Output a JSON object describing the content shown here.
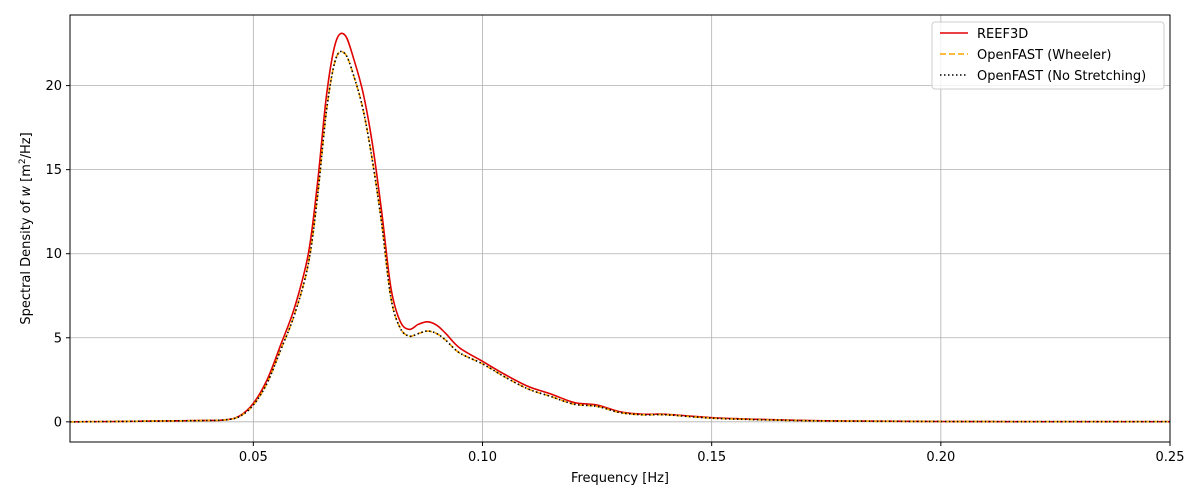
{
  "chart_data": {
    "type": "line",
    "title": "",
    "xlabel": "Frequency [Hz]",
    "ylabel_prefix": "Spectral Density of ",
    "ylabel_var": "w",
    "ylabel_unit_open": " [m",
    "ylabel_unit_sup": "2",
    "ylabel_unit_close": "/Hz]",
    "xlim": [
      0.01,
      0.25
    ],
    "ylim": [
      -1.2,
      24.2
    ],
    "xticks": [
      0.05,
      0.1,
      0.15,
      0.2,
      0.25
    ],
    "xtick_labels": [
      "0.05",
      "0.10",
      "0.15",
      "0.20",
      "0.25"
    ],
    "yticks": [
      0,
      5,
      10,
      15,
      20
    ],
    "ytick_labels": [
      "0",
      "5",
      "10",
      "15",
      "20"
    ],
    "grid": true,
    "legend_position": "top-right",
    "series": [
      {
        "name": "REEF3D",
        "color": "#e00000",
        "style": "solid",
        "x": [
          0.01,
          0.02,
          0.03,
          0.04,
          0.044,
          0.047,
          0.05,
          0.053,
          0.056,
          0.059,
          0.062,
          0.064,
          0.066,
          0.068,
          0.07,
          0.072,
          0.074,
          0.076,
          0.078,
          0.08,
          0.082,
          0.084,
          0.086,
          0.088,
          0.09,
          0.092,
          0.095,
          0.1,
          0.105,
          0.11,
          0.115,
          0.12,
          0.125,
          0.13,
          0.135,
          0.14,
          0.15,
          0.16,
          0.17,
          0.18,
          0.2,
          0.22,
          0.25
        ],
        "y": [
          0,
          0.02,
          0.05,
          0.08,
          0.12,
          0.35,
          1.1,
          2.5,
          4.6,
          6.8,
          10.0,
          14.2,
          19.5,
          22.6,
          23.0,
          21.5,
          19.5,
          16.5,
          12.5,
          8.0,
          6.0,
          5.5,
          5.8,
          5.95,
          5.75,
          5.25,
          4.4,
          3.6,
          2.8,
          2.1,
          1.65,
          1.15,
          1.0,
          0.6,
          0.45,
          0.45,
          0.25,
          0.15,
          0.08,
          0.05,
          0.02,
          0.01,
          0.01
        ]
      },
      {
        "name": "OpenFAST (Wheeler)",
        "color": "#ffa500",
        "style": "dashed",
        "x": [
          0.01,
          0.02,
          0.03,
          0.04,
          0.044,
          0.047,
          0.05,
          0.053,
          0.056,
          0.059,
          0.062,
          0.064,
          0.066,
          0.068,
          0.07,
          0.072,
          0.074,
          0.076,
          0.078,
          0.08,
          0.082,
          0.084,
          0.086,
          0.088,
          0.09,
          0.092,
          0.095,
          0.1,
          0.105,
          0.11,
          0.115,
          0.12,
          0.125,
          0.13,
          0.135,
          0.14,
          0.15,
          0.16,
          0.17,
          0.18,
          0.2,
          0.22,
          0.25
        ],
        "y": [
          0,
          0.02,
          0.05,
          0.08,
          0.12,
          0.32,
          1.0,
          2.3,
          4.3,
          6.4,
          9.4,
          13.4,
          18.6,
          21.6,
          21.9,
          20.5,
          18.5,
          15.5,
          11.8,
          7.4,
          5.6,
          5.1,
          5.25,
          5.4,
          5.25,
          4.85,
          4.1,
          3.45,
          2.65,
          1.95,
          1.5,
          1.05,
          0.92,
          0.55,
          0.42,
          0.42,
          0.22,
          0.13,
          0.07,
          0.04,
          0.02,
          0.01,
          0.01
        ]
      },
      {
        "name": "OpenFAST (No Stretching)",
        "color": "#000000",
        "style": "dotted",
        "x": [
          0.01,
          0.02,
          0.03,
          0.04,
          0.044,
          0.047,
          0.05,
          0.053,
          0.056,
          0.059,
          0.062,
          0.064,
          0.066,
          0.068,
          0.07,
          0.072,
          0.074,
          0.076,
          0.078,
          0.08,
          0.082,
          0.084,
          0.086,
          0.088,
          0.09,
          0.092,
          0.095,
          0.1,
          0.105,
          0.11,
          0.115,
          0.12,
          0.125,
          0.13,
          0.135,
          0.14,
          0.15,
          0.16,
          0.17,
          0.18,
          0.2,
          0.22,
          0.25
        ],
        "y": [
          0,
          0.02,
          0.05,
          0.08,
          0.12,
          0.32,
          1.0,
          2.3,
          4.3,
          6.4,
          9.4,
          13.4,
          18.6,
          21.6,
          21.9,
          20.5,
          18.5,
          15.5,
          11.8,
          7.4,
          5.6,
          5.1,
          5.25,
          5.4,
          5.25,
          4.85,
          4.1,
          3.45,
          2.65,
          1.95,
          1.5,
          1.05,
          0.92,
          0.55,
          0.42,
          0.42,
          0.22,
          0.13,
          0.07,
          0.04,
          0.02,
          0.01,
          0.01
        ]
      }
    ]
  }
}
